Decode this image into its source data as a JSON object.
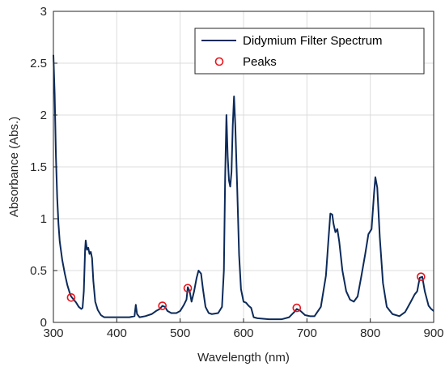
{
  "chart_data": {
    "type": "line",
    "xlabel": "Wavelength (nm)",
    "ylabel": "Absorbance (Abs.)",
    "xlim": [
      300,
      900
    ],
    "ylim": [
      0,
      3
    ],
    "xticks": [
      300,
      400,
      500,
      600,
      700,
      800,
      900
    ],
    "yticks": [
      0,
      0.5,
      1,
      1.5,
      2,
      2.5,
      3
    ],
    "ytick_labels": [
      "0",
      "0.5",
      "1",
      "1.5",
      "2",
      "2.5",
      "3"
    ],
    "grid": true,
    "legend_position": "top-right",
    "colors": {
      "line": "#0c2a5a",
      "marker": "#e8141c",
      "grid": "#dcdcdc",
      "axis": "#262626"
    },
    "series": [
      {
        "name": "Didymium Filter Spectrum",
        "kind": "line",
        "points": [
          [
            300,
            2.58
          ],
          [
            302,
            2.2
          ],
          [
            304,
            1.6
          ],
          [
            306,
            1.2
          ],
          [
            308,
            0.95
          ],
          [
            310,
            0.78
          ],
          [
            314,
            0.6
          ],
          [
            318,
            0.47
          ],
          [
            322,
            0.36
          ],
          [
            326,
            0.28
          ],
          [
            328,
            0.25
          ],
          [
            332,
            0.22
          ],
          [
            336,
            0.19
          ],
          [
            340,
            0.15
          ],
          [
            344,
            0.13
          ],
          [
            346,
            0.14
          ],
          [
            348,
            0.3
          ],
          [
            350,
            0.7
          ],
          [
            351,
            0.79
          ],
          [
            353,
            0.7
          ],
          [
            355,
            0.72
          ],
          [
            357,
            0.66
          ],
          [
            359,
            0.68
          ],
          [
            361,
            0.62
          ],
          [
            363,
            0.4
          ],
          [
            366,
            0.2
          ],
          [
            370,
            0.12
          ],
          [
            375,
            0.07
          ],
          [
            380,
            0.05
          ],
          [
            400,
            0.05
          ],
          [
            420,
            0.05
          ],
          [
            428,
            0.06
          ],
          [
            430,
            0.17
          ],
          [
            432,
            0.08
          ],
          [
            436,
            0.05
          ],
          [
            445,
            0.06
          ],
          [
            455,
            0.08
          ],
          [
            462,
            0.11
          ],
          [
            468,
            0.13
          ],
          [
            472,
            0.16
          ],
          [
            476,
            0.15
          ],
          [
            480,
            0.11
          ],
          [
            486,
            0.09
          ],
          [
            494,
            0.09
          ],
          [
            500,
            0.11
          ],
          [
            506,
            0.17
          ],
          [
            510,
            0.22
          ],
          [
            512,
            0.34
          ],
          [
            515,
            0.3
          ],
          [
            518,
            0.2
          ],
          [
            522,
            0.3
          ],
          [
            526,
            0.43
          ],
          [
            529,
            0.5
          ],
          [
            533,
            0.47
          ],
          [
            536,
            0.32
          ],
          [
            540,
            0.15
          ],
          [
            545,
            0.09
          ],
          [
            550,
            0.08
          ],
          [
            560,
            0.09
          ],
          [
            566,
            0.15
          ],
          [
            569,
            0.5
          ],
          [
            571,
            1.4
          ],
          [
            573,
            2.0
          ],
          [
            575,
            1.6
          ],
          [
            577,
            1.37
          ],
          [
            579,
            1.31
          ],
          [
            581,
            1.45
          ],
          [
            583,
            1.9
          ],
          [
            585,
            2.18
          ],
          [
            587,
            1.9
          ],
          [
            590,
            1.3
          ],
          [
            593,
            0.65
          ],
          [
            596,
            0.32
          ],
          [
            600,
            0.2
          ],
          [
            604,
            0.19
          ],
          [
            608,
            0.16
          ],
          [
            612,
            0.14
          ],
          [
            616,
            0.05
          ],
          [
            622,
            0.04
          ],
          [
            640,
            0.03
          ],
          [
            660,
            0.03
          ],
          [
            672,
            0.05
          ],
          [
            680,
            0.1
          ],
          [
            684,
            0.13
          ],
          [
            690,
            0.11
          ],
          [
            697,
            0.07
          ],
          [
            705,
            0.06
          ],
          [
            712,
            0.06
          ],
          [
            722,
            0.15
          ],
          [
            730,
            0.45
          ],
          [
            734,
            0.8
          ],
          [
            737,
            1.05
          ],
          [
            740,
            1.04
          ],
          [
            742,
            0.95
          ],
          [
            745,
            0.87
          ],
          [
            748,
            0.9
          ],
          [
            751,
            0.78
          ],
          [
            756,
            0.5
          ],
          [
            762,
            0.3
          ],
          [
            768,
            0.22
          ],
          [
            774,
            0.2
          ],
          [
            780,
            0.25
          ],
          [
            786,
            0.45
          ],
          [
            792,
            0.66
          ],
          [
            797,
            0.85
          ],
          [
            802,
            0.9
          ],
          [
            806,
            1.25
          ],
          [
            808,
            1.4
          ],
          [
            811,
            1.3
          ],
          [
            815,
            0.82
          ],
          [
            820,
            0.38
          ],
          [
            826,
            0.15
          ],
          [
            835,
            0.08
          ],
          [
            846,
            0.06
          ],
          [
            855,
            0.1
          ],
          [
            864,
            0.2
          ],
          [
            870,
            0.27
          ],
          [
            874,
            0.3
          ],
          [
            878,
            0.43
          ],
          [
            882,
            0.44
          ],
          [
            886,
            0.3
          ],
          [
            892,
            0.16
          ],
          [
            896,
            0.13
          ],
          [
            900,
            0.11
          ]
        ]
      },
      {
        "name": "Peaks",
        "kind": "markers",
        "points": [
          [
            328,
            0.24
          ],
          [
            472,
            0.16
          ],
          [
            512,
            0.33
          ],
          [
            684,
            0.14
          ],
          [
            880,
            0.44
          ]
        ]
      }
    ]
  }
}
